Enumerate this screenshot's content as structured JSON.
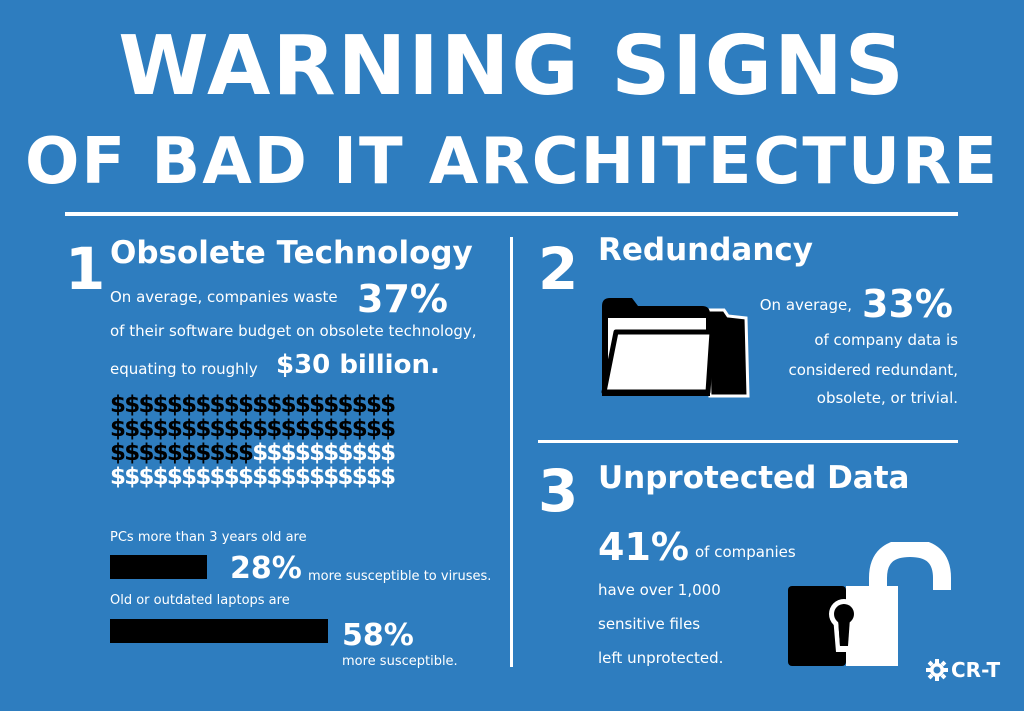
{
  "title": {
    "line1": "WARNING SIGNS",
    "line2": "OF BAD IT ARCHITECTURE"
  },
  "section1": {
    "number": "1",
    "heading": "Obsolete Technology",
    "text_a": "On average, companies waste",
    "stat_a": "37%",
    "text_b": "of their software budget on obsolete technology,",
    "text_c": "equating to roughly",
    "stat_b": "$30 billion.",
    "dollar_symbol": "$",
    "dollar_grid": {
      "rows": 4,
      "columns": 20,
      "black_count": 50,
      "white_count": 30
    },
    "pcs_label": "PCs more than 3 years old are",
    "pcs_stat": "28%",
    "pcs_text": "more susceptible to viruses.",
    "pcs_value": 28,
    "laptops_label": "Old or outdated laptops are",
    "laptops_stat": "58%",
    "laptops_text": "more susceptible.",
    "laptops_value": 58
  },
  "section2": {
    "number": "2",
    "heading": "Redundancy",
    "text_a": "On average,",
    "stat_a": "33%",
    "text_b": "of company data is",
    "text_c": "considered redundant,",
    "text_d": "obsolete, or trivial.",
    "icon": "folder-icon"
  },
  "section3": {
    "number": "3",
    "heading": "Unprotected Data",
    "stat_a": "41%",
    "text_a": "of companies",
    "text_b": "have over 1,000",
    "text_c": "sensitive files",
    "text_d": "left unprotected.",
    "icon": "open-padlock-icon"
  },
  "logo": {
    "text": "CR-T",
    "icon": "gear-icon"
  },
  "colors": {
    "background": "#2e7dbf",
    "text": "#ffffff",
    "accent_dark": "#000000"
  }
}
